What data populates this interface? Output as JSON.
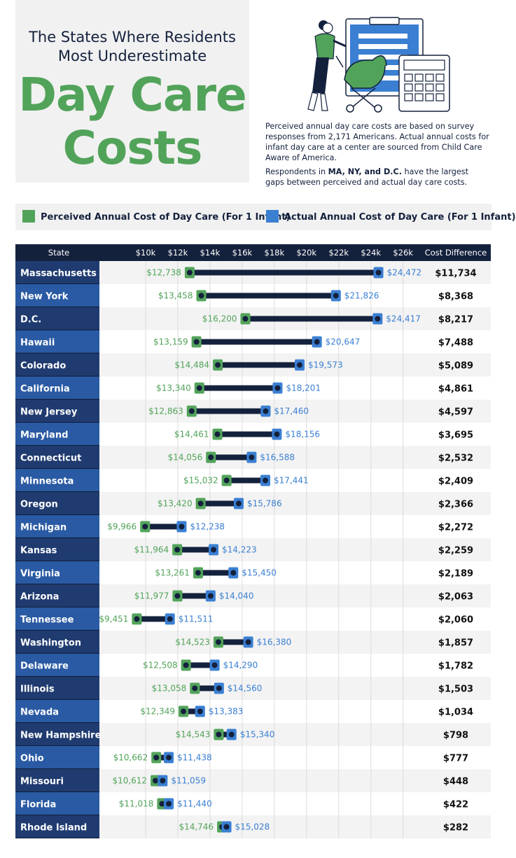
{
  "title": {
    "line1": "The States Where Residents",
    "line2": "Most Underestimate",
    "big1": "Day Care",
    "big2": "Costs"
  },
  "description": {
    "p1": "Perceived annual day care costs are based on survey responses from 2,171 Americans. Actual annual costs for infant day care at a center are sourced from Child Care Aware of America.",
    "p2_before": "Respondents in ",
    "p2_bold": "MA, NY, and D.C.",
    "p2_after": " have the largest gaps between perceived and actual day care costs."
  },
  "legend": {
    "perceived": "Perceived Annual Cost of Day Care (For 1 Infant)",
    "actual": "Actual Annual Cost of Day Care (For 1 Infant)"
  },
  "colors": {
    "perceived": "#52a35a",
    "actual": "#3a7fd2",
    "navy": "#14213d",
    "state_dark": "#1f3b70",
    "state_light": "#2a5aa3"
  },
  "illustration": {
    "icon": "parent-with-stroller-calendar-calculator-icon"
  },
  "chart_data": {
    "type": "dumbbell",
    "headers": {
      "state": "State",
      "difference": "Cost Difference"
    },
    "x_ticks": [
      "$10k",
      "$12k",
      "$14k",
      "$16k",
      "$18k",
      "$20k",
      "$22k",
      "$24k",
      "$26k"
    ],
    "x_tick_values": [
      10000,
      12000,
      14000,
      16000,
      18000,
      20000,
      22000,
      24000,
      26000
    ],
    "xlim": [
      9000,
      27000
    ],
    "series": [
      {
        "name": "Perceived Annual Cost of Day Care (For 1 Infant)",
        "key": "perceived"
      },
      {
        "name": "Actual Annual Cost of Day Care (For 1 Infant)",
        "key": "actual"
      }
    ],
    "rows": [
      {
        "state": "Massachusetts",
        "perceived": 12738,
        "perceived_label": "$12,738",
        "actual": 24472,
        "actual_label": "$24,472",
        "difference": "$11,734"
      },
      {
        "state": "New York",
        "perceived": 13458,
        "perceived_label": "$13,458",
        "actual": 21826,
        "actual_label": "$21,826",
        "difference": "$8,368"
      },
      {
        "state": "D.C.",
        "perceived": 16200,
        "perceived_label": "$16,200",
        "actual": 24417,
        "actual_label": "$24,417",
        "difference": "$8,217"
      },
      {
        "state": "Hawaii",
        "perceived": 13159,
        "perceived_label": "$13,159",
        "actual": 20647,
        "actual_label": "$20,647",
        "difference": "$7,488"
      },
      {
        "state": "Colorado",
        "perceived": 14484,
        "perceived_label": "$14,484",
        "actual": 19573,
        "actual_label": "$19,573",
        "difference": "$5,089"
      },
      {
        "state": "California",
        "perceived": 13340,
        "perceived_label": "$13,340",
        "actual": 18201,
        "actual_label": "$18,201",
        "difference": "$4,861"
      },
      {
        "state": "New Jersey",
        "perceived": 12863,
        "perceived_label": "$12,863",
        "actual": 17460,
        "actual_label": "$17,460",
        "difference": "$4,597"
      },
      {
        "state": "Maryland",
        "perceived": 14461,
        "perceived_label": "$14,461",
        "actual": 18156,
        "actual_label": "$18,156",
        "difference": "$3,695"
      },
      {
        "state": "Connecticut",
        "perceived": 14056,
        "perceived_label": "$14,056",
        "actual": 16588,
        "actual_label": "$16,588",
        "difference": "$2,532"
      },
      {
        "state": "Minnesota",
        "perceived": 15032,
        "perceived_label": "$15,032",
        "actual": 17441,
        "actual_label": "$17,441",
        "difference": "$2,409"
      },
      {
        "state": "Oregon",
        "perceived": 13420,
        "perceived_label": "$13,420",
        "actual": 15786,
        "actual_label": "$15,786",
        "difference": "$2,366"
      },
      {
        "state": "Michigan",
        "perceived": 9966,
        "perceived_label": "$9,966",
        "actual": 12238,
        "actual_label": "$12,238",
        "difference": "$2,272"
      },
      {
        "state": "Kansas",
        "perceived": 11964,
        "perceived_label": "$11,964",
        "actual": 14223,
        "actual_label": "$14,223",
        "difference": "$2,259"
      },
      {
        "state": "Virginia",
        "perceived": 13261,
        "perceived_label": "$13,261",
        "actual": 15450,
        "actual_label": "$15,450",
        "difference": "$2,189"
      },
      {
        "state": "Arizona",
        "perceived": 11977,
        "perceived_label": "$11,977",
        "actual": 14040,
        "actual_label": "$14,040",
        "difference": "$2,063"
      },
      {
        "state": "Tennessee",
        "perceived": 9451,
        "perceived_label": "$9,451",
        "actual": 11511,
        "actual_label": "$11,511",
        "difference": "$2,060"
      },
      {
        "state": "Washington",
        "perceived": 14523,
        "perceived_label": "$14,523",
        "actual": 16380,
        "actual_label": "$16,380",
        "difference": "$1,857"
      },
      {
        "state": "Delaware",
        "perceived": 12508,
        "perceived_label": "$12,508",
        "actual": 14290,
        "actual_label": "$14,290",
        "difference": "$1,782"
      },
      {
        "state": "Illinois",
        "perceived": 13058,
        "perceived_label": "$13,058",
        "actual": 14560,
        "actual_label": "$14,560",
        "difference": "$1,503"
      },
      {
        "state": "Nevada",
        "perceived": 12349,
        "perceived_label": "$12,349",
        "actual": 13383,
        "actual_label": "$13,383",
        "difference": "$1,034"
      },
      {
        "state": "New Hampshire",
        "perceived": 14543,
        "perceived_label": "$14,543",
        "actual": 15340,
        "actual_label": "$15,340",
        "difference": "$798"
      },
      {
        "state": "Ohio",
        "perceived": 10662,
        "perceived_label": "$10,662",
        "actual": 11438,
        "actual_label": "$11,438",
        "difference": "$777"
      },
      {
        "state": "Missouri",
        "perceived": 10612,
        "perceived_label": "$10,612",
        "actual": 11059,
        "actual_label": "$11,059",
        "difference": "$448"
      },
      {
        "state": "Florida",
        "perceived": 11018,
        "perceived_label": "$11,018",
        "actual": 11440,
        "actual_label": "$11,440",
        "difference": "$422"
      },
      {
        "state": "Rhode Island",
        "perceived": 14746,
        "perceived_label": "$14,746",
        "actual": 15028,
        "actual_label": "$15,028",
        "difference": "$282"
      }
    ]
  }
}
